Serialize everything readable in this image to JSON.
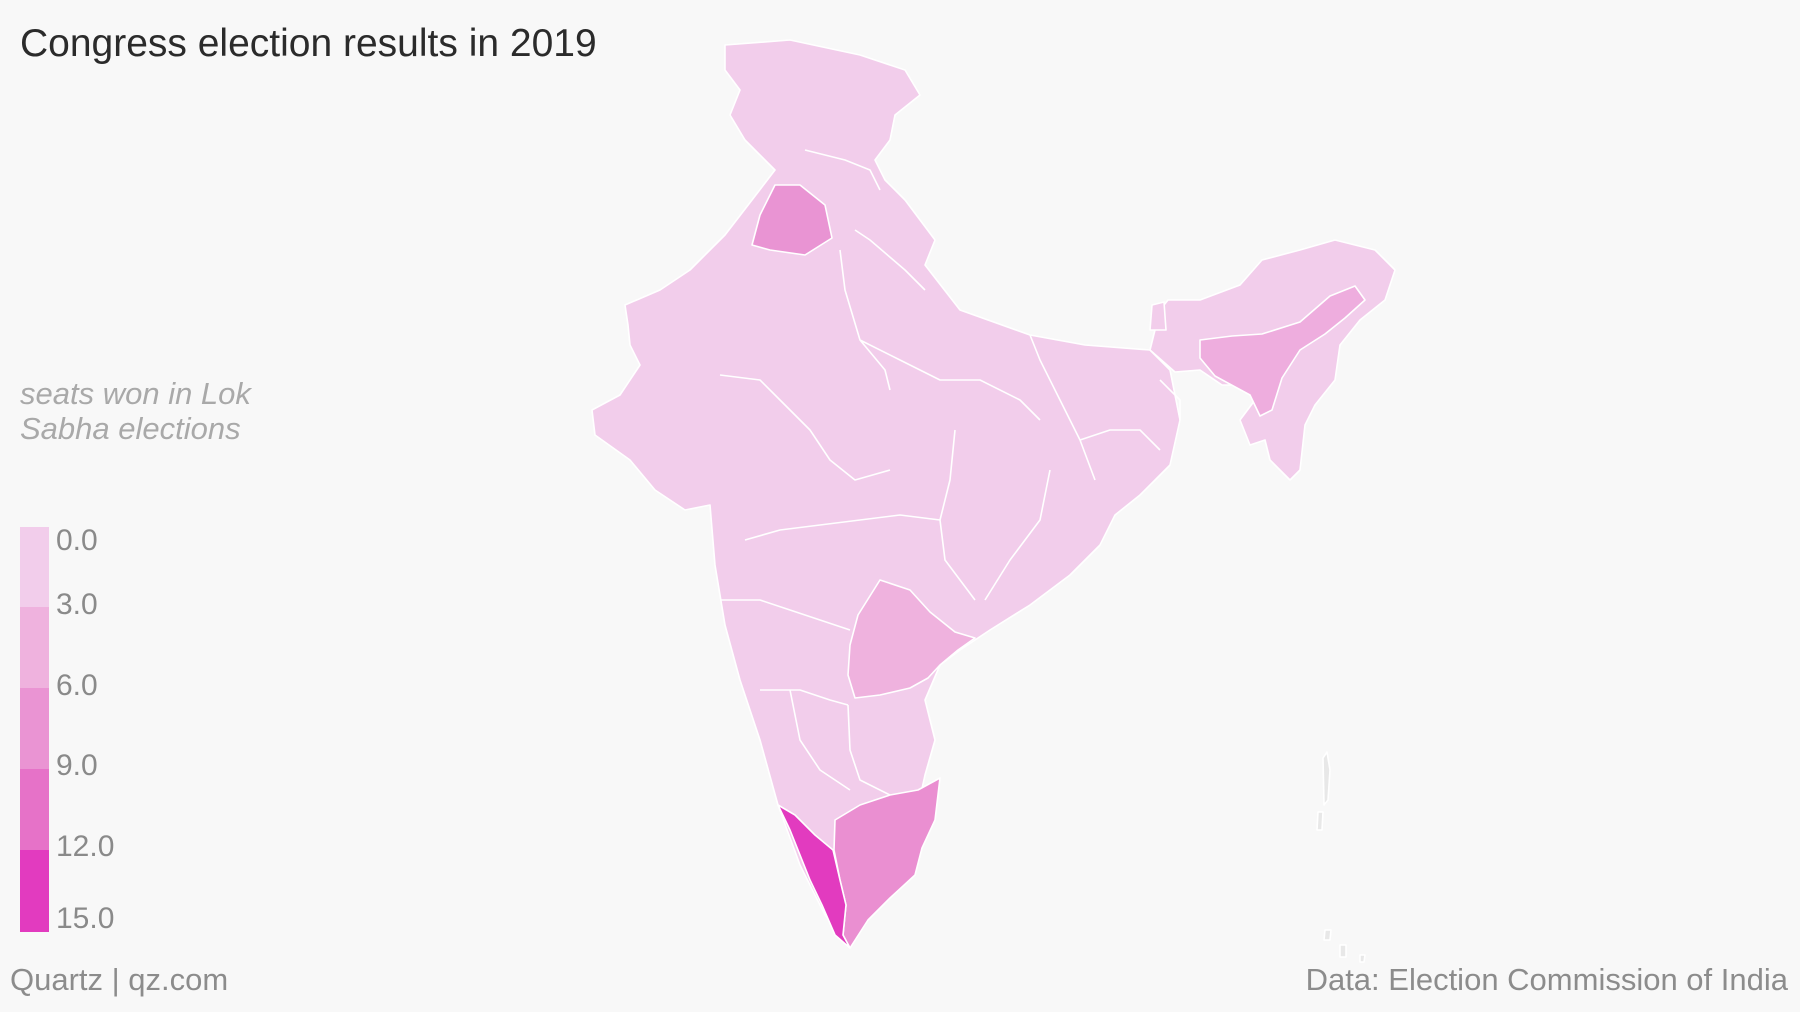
{
  "title": "Congress election results in 2019",
  "legend": {
    "title": "seats won in Lok Sabha elections",
    "ticks": [
      "0.0",
      "3.0",
      "6.0",
      "9.0",
      "12.0",
      "15.0"
    ],
    "colors": [
      "#f2cdeb",
      "#efb2de",
      "#ea94d3",
      "#e672c8",
      "#e23bbf"
    ]
  },
  "footer": {
    "source_left": "Quartz | qz.com",
    "source_right": "Data: Election Commission of India"
  },
  "map": {
    "base_color": "#f2cdeb",
    "highlight_regions": [
      {
        "region": "punjab",
        "color": "#e994d3"
      },
      {
        "region": "assam",
        "color": "#eeadde"
      },
      {
        "region": "telangana",
        "color": "#efb2de"
      },
      {
        "region": "tamil-nadu",
        "color": "#ea8fd1"
      },
      {
        "region": "kerala",
        "color": "#e23bbf"
      }
    ]
  }
}
